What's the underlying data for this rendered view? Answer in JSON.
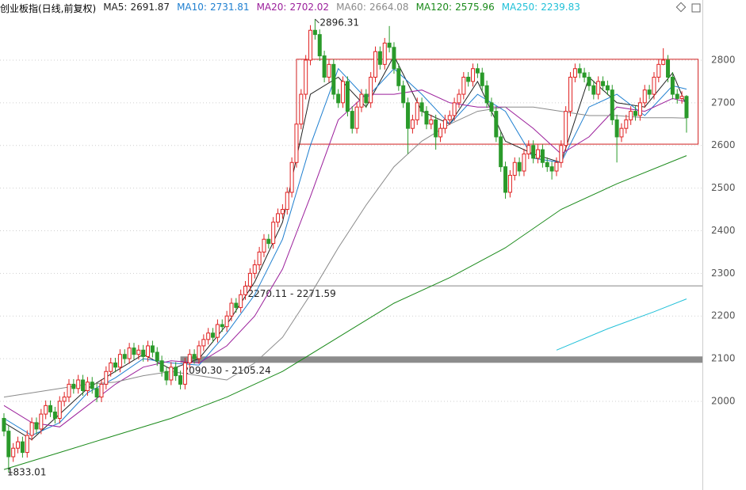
{
  "chart_data": {
    "type": "candlestick",
    "title": "创业板指(日线,前复权)",
    "xlim": [
      -0.85,
      150.42
    ],
    "ylim": [
      1792,
      2941
    ],
    "yticks": [
      2000,
      2100,
      2200,
      2300,
      2400,
      2500,
      2600,
      2700,
      2800
    ],
    "grid": true,
    "up_color": "#e02020",
    "down_color": "#2a9a2a",
    "candles": {
      "open": [
        1960,
        1930,
        1870,
        1890,
        1905,
        1880,
        1920,
        1950,
        1935,
        1970,
        1990,
        1975,
        1960,
        2000,
        2010,
        2040,
        2030,
        2050,
        2025,
        2045,
        2030,
        2010,
        2040,
        2070,
        2090,
        2080,
        2110,
        2100,
        2125,
        2110,
        2120,
        2105,
        2130,
        2115,
        2095,
        2070,
        2050,
        2080,
        2060,
        2040,
        2090,
        2110,
        2100,
        2130,
        2145,
        2160,
        2150,
        2180,
        2175,
        2200,
        2230,
        2220,
        2250,
        2270,
        2300,
        2320,
        2350,
        2380,
        2370,
        2420,
        2440,
        2450,
        2490,
        2560,
        2650,
        2720,
        2800,
        2870,
        2860,
        2810,
        2760,
        2790,
        2720,
        2700,
        2750,
        2680,
        2640,
        2690,
        2720,
        2700,
        2760,
        2820,
        2790,
        2840,
        2830,
        2780,
        2740,
        2700,
        2640,
        2660,
        2700,
        2680,
        2650,
        2660,
        2620,
        2640,
        2660,
        2670,
        2700,
        2720,
        2760,
        2750,
        2780,
        2770,
        2740,
        2700,
        2680,
        2620,
        2550,
        2490,
        2530,
        2560,
        2540,
        2580,
        2600,
        2570,
        2590,
        2560,
        2550,
        2540,
        2560,
        2600,
        2680,
        2760,
        2780,
        2770,
        2760,
        2740,
        2720,
        2750,
        2740,
        2730,
        2660,
        2620,
        2640,
        2660,
        2680,
        2670,
        2700,
        2730,
        2720,
        2760,
        2790,
        2800,
        2760,
        2720,
        2710,
        2715
      ],
      "high": [
        1972,
        1942,
        1902,
        1917,
        1917,
        1932,
        1962,
        1962,
        1982,
        2002,
        2002,
        1987,
        2012,
        2022,
        2052,
        2052,
        2062,
        2062,
        2057,
        2057,
        2042,
        2052,
        2082,
        2102,
        2102,
        2122,
        2122,
        2137,
        2137,
        2132,
        2132,
        2142,
        2142,
        2127,
        2107,
        2082,
        2092,
        2092,
        2072,
        2102,
        2122,
        2122,
        2142,
        2157,
        2172,
        2172,
        2192,
        2192,
        2212,
        2242,
        2242,
        2262,
        2282,
        2312,
        2332,
        2362,
        2392,
        2392,
        2432,
        2452,
        2462,
        2502,
        2572,
        2662,
        2732,
        2812,
        2882,
        2896,
        2872,
        2822,
        2802,
        2802,
        2732,
        2762,
        2762,
        2692,
        2702,
        2732,
        2732,
        2772,
        2832,
        2832,
        2852,
        2880,
        2842,
        2792,
        2752,
        2712,
        2672,
        2712,
        2712,
        2692,
        2672,
        2672,
        2652,
        2672,
        2682,
        2712,
        2732,
        2772,
        2772,
        2792,
        2792,
        2782,
        2752,
        2712,
        2692,
        2632,
        2562,
        2542,
        2572,
        2572,
        2592,
        2612,
        2612,
        2602,
        2602,
        2572,
        2562,
        2572,
        2612,
        2692,
        2772,
        2792,
        2792,
        2782,
        2772,
        2752,
        2762,
        2762,
        2752,
        2742,
        2672,
        2652,
        2672,
        2692,
        2692,
        2712,
        2742,
        2742,
        2772,
        2802,
        2828,
        2812,
        2772,
        2732,
        2727,
        2718
      ],
      "low": [
        1918,
        1833,
        1858,
        1878,
        1868,
        1868,
        1908,
        1923,
        1923,
        1958,
        1963,
        1948,
        1948,
        1988,
        1998,
        2018,
        2018,
        2013,
        2013,
        2018,
        1998,
        1998,
        2028,
        2058,
        2068,
        2068,
        2088,
        2088,
        2098,
        2098,
        2093,
        2093,
        2103,
        2083,
        2058,
        2038,
        2038,
        2048,
        2028,
        2028,
        2078,
        2088,
        2088,
        2118,
        2133,
        2138,
        2138,
        2163,
        2163,
        2188,
        2208,
        2208,
        2238,
        2258,
        2288,
        2308,
        2338,
        2358,
        2358,
        2408,
        2428,
        2438,
        2478,
        2548,
        2638,
        2708,
        2788,
        2848,
        2798,
        2748,
        2748,
        2708,
        2688,
        2688,
        2668,
        2628,
        2628,
        2678,
        2688,
        2688,
        2748,
        2778,
        2778,
        2818,
        2768,
        2728,
        2688,
        2580,
        2628,
        2648,
        2668,
        2638,
        2638,
        2590,
        2608,
        2628,
        2648,
        2658,
        2688,
        2708,
        2738,
        2738,
        2758,
        2728,
        2688,
        2668,
        2608,
        2538,
        2475,
        2478,
        2518,
        2528,
        2528,
        2568,
        2558,
        2558,
        2548,
        2538,
        2520,
        2528,
        2548,
        2588,
        2668,
        2748,
        2758,
        2748,
        2728,
        2708,
        2708,
        2728,
        2718,
        2648,
        2560,
        2608,
        2628,
        2648,
        2658,
        2658,
        2688,
        2708,
        2708,
        2748,
        2788,
        2748,
        2708,
        2698,
        2698,
        2630
      ],
      "close": [
        1930,
        1870,
        1890,
        1905,
        1880,
        1920,
        1950,
        1935,
        1970,
        1990,
        1975,
        1960,
        2000,
        2010,
        2040,
        2030,
        2050,
        2025,
        2045,
        2030,
        2010,
        2040,
        2070,
        2090,
        2080,
        2110,
        2100,
        2125,
        2110,
        2120,
        2105,
        2130,
        2115,
        2095,
        2070,
        2050,
        2080,
        2060,
        2040,
        2090,
        2110,
        2100,
        2130,
        2145,
        2160,
        2150,
        2180,
        2175,
        2200,
        2230,
        2220,
        2250,
        2270,
        2300,
        2320,
        2350,
        2380,
        2370,
        2420,
        2440,
        2450,
        2490,
        2560,
        2650,
        2720,
        2800,
        2870,
        2860,
        2810,
        2760,
        2790,
        2720,
        2700,
        2750,
        2680,
        2640,
        2690,
        2720,
        2700,
        2760,
        2820,
        2790,
        2840,
        2830,
        2780,
        2740,
        2700,
        2640,
        2660,
        2700,
        2680,
        2650,
        2660,
        2620,
        2640,
        2660,
        2670,
        2700,
        2720,
        2760,
        2750,
        2780,
        2770,
        2740,
        2700,
        2680,
        2620,
        2550,
        2490,
        2530,
        2560,
        2540,
        2580,
        2600,
        2570,
        2590,
        2560,
        2550,
        2540,
        2560,
        2600,
        2680,
        2760,
        2780,
        2770,
        2760,
        2740,
        2720,
        2750,
        2740,
        2730,
        2660,
        2620,
        2640,
        2660,
        2680,
        2670,
        2700,
        2730,
        2720,
        2760,
        2790,
        2800,
        2760,
        2720,
        2710,
        2715,
        2665
      ]
    },
    "series": [
      {
        "name": "MA5:",
        "latest": 2691.87,
        "color": "#222222",
        "x": [
          0,
          6,
          12,
          18,
          24,
          30,
          36,
          42,
          48,
          54,
          60,
          66,
          72,
          78,
          84,
          90,
          96,
          102,
          108,
          114,
          120,
          126,
          132,
          138,
          144,
          147
        ],
        "values": [
          1950,
          1910,
          1970,
          2030,
          2070,
          2110,
          2075,
          2100,
          2180,
          2280,
          2420,
          2720,
          2760,
          2690,
          2810,
          2680,
          2650,
          2750,
          2610,
          2580,
          2560,
          2760,
          2700,
          2690,
          2770,
          2692
        ]
      },
      {
        "name": "MA10:",
        "latest": 2731.81,
        "color": "#1e7fd0",
        "x": [
          0,
          6,
          12,
          18,
          24,
          30,
          36,
          42,
          48,
          54,
          60,
          66,
          72,
          78,
          84,
          90,
          96,
          102,
          108,
          114,
          120,
          126,
          132,
          138,
          144,
          147
        ],
        "values": [
          1960,
          1920,
          1950,
          2020,
          2055,
          2100,
          2090,
          2085,
          2160,
          2250,
          2380,
          2600,
          2780,
          2710,
          2780,
          2720,
          2650,
          2720,
          2680,
          2570,
          2560,
          2690,
          2720,
          2670,
          2740,
          2732
        ]
      },
      {
        "name": "MA20:",
        "latest": 2702.02,
        "color": "#9b1f9b",
        "x": [
          0,
          6,
          12,
          18,
          24,
          30,
          36,
          42,
          48,
          54,
          60,
          66,
          72,
          78,
          84,
          90,
          96,
          102,
          108,
          114,
          120,
          126,
          132,
          138,
          144,
          147
        ],
        "values": [
          1990,
          1950,
          1940,
          1990,
          2040,
          2080,
          2095,
          2090,
          2130,
          2200,
          2310,
          2480,
          2660,
          2720,
          2720,
          2730,
          2700,
          2690,
          2690,
          2640,
          2580,
          2620,
          2690,
          2680,
          2710,
          2702
        ]
      },
      {
        "name": "MA60:",
        "latest": 2664.08,
        "color": "#8a8a8a",
        "x": [
          0,
          6,
          12,
          18,
          24,
          30,
          36,
          42,
          48,
          54,
          60,
          66,
          72,
          78,
          84,
          90,
          96,
          102,
          108,
          114,
          120,
          126,
          132,
          138,
          144,
          147
        ],
        "values": [
          2010,
          2020,
          2030,
          2040,
          2045,
          2060,
          2070,
          2060,
          2050,
          2090,
          2150,
          2250,
          2360,
          2460,
          2550,
          2610,
          2650,
          2680,
          2690,
          2690,
          2680,
          2670,
          2670,
          2665,
          2665,
          2664
        ]
      },
      {
        "name": "MA120:",
        "latest": 2575.96,
        "color": "#1a8a1a",
        "x": [
          0,
          12,
          24,
          36,
          48,
          60,
          72,
          84,
          96,
          108,
          120,
          132,
          147
        ],
        "values": [
          1840,
          1880,
          1920,
          1960,
          2010,
          2070,
          2150,
          2230,
          2290,
          2360,
          2450,
          2510,
          2576
        ]
      },
      {
        "name": "MA250:",
        "latest": 2239.83,
        "color": "#20c0d8",
        "x": [
          119,
          130,
          140,
          147
        ],
        "values": [
          2120,
          2170,
          2210,
          2240
        ]
      }
    ],
    "annotations": [
      {
        "value": 2896.31,
        "x": 67
      },
      {
        "value": 1833.01,
        "x": 1
      }
    ],
    "levels": [
      {
        "range": [
          2270.11,
          2271.59
        ],
        "label": "2270.11 - 2271.59",
        "from": 52,
        "color": "#888888"
      },
      {
        "range": [
          2090.3,
          2105.24
        ],
        "label": "2090.30 - 2105.24",
        "from": 38,
        "color": "#8c8c8c"
      }
    ],
    "box": {
      "x": [
        63,
        149.5
      ],
      "y": [
        2603,
        2802
      ],
      "color": "#d02020"
    }
  }
}
